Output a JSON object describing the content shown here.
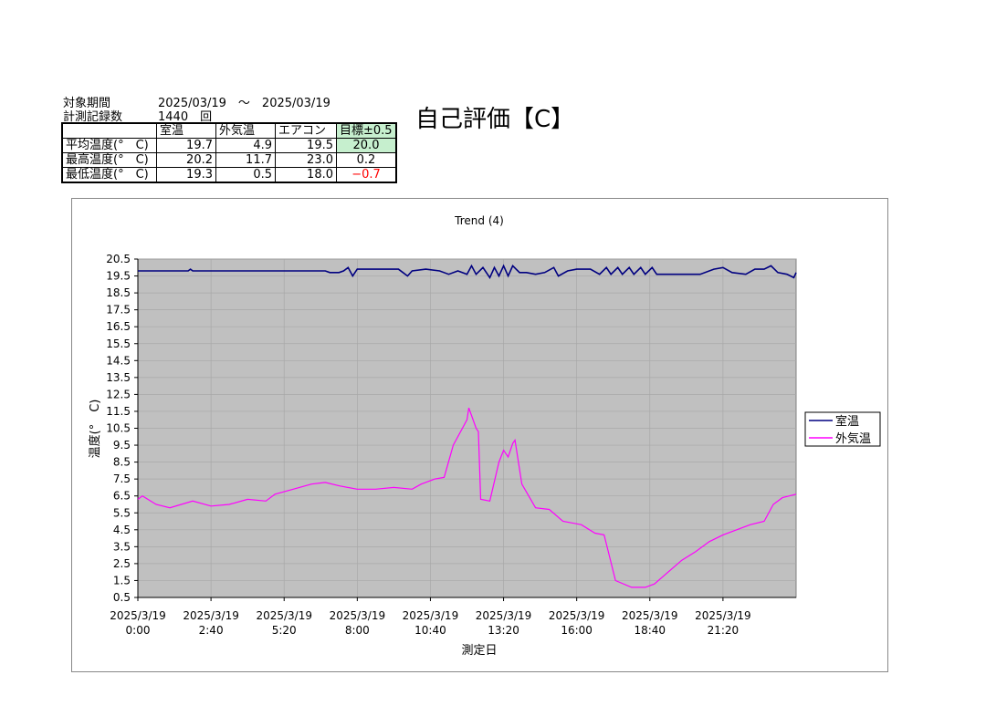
{
  "header": {
    "period_label": "対象期間",
    "period_value": "2025/03/19　～　2025/03/19",
    "count_label": "計測記録数",
    "count_value": "1440　回"
  },
  "self_eval": "自己評価【C】",
  "table": {
    "columns": [
      "",
      "室温",
      "外気温",
      "エアコン",
      "目標±0.5"
    ],
    "rows": [
      {
        "label": "平均温度(°　C)",
        "values": [
          "19.7",
          "4.9",
          "19.5",
          "20.0"
        ]
      },
      {
        "label": "最高温度(°　C)",
        "values": [
          "20.2",
          "11.7",
          "23.0",
          "0.2"
        ]
      },
      {
        "label": "最低温度(°　C)",
        "values": [
          "19.3",
          "0.5",
          "18.0",
          "−0.7"
        ]
      }
    ],
    "highlight_color": "#c6efce",
    "negative_color": "#ff0000"
  },
  "chart_data": {
    "type": "line",
    "title": "Trend (4)",
    "xlabel": "測定日",
    "ylabel": "温度(°　C)",
    "ylim": [
      0.5,
      20.5
    ],
    "yticks": [
      20.5,
      19.5,
      18.5,
      17.5,
      16.5,
      15.5,
      14.5,
      13.5,
      12.5,
      11.5,
      10.5,
      9.5,
      8.5,
      7.5,
      6.5,
      5.5,
      4.5,
      3.5,
      2.5,
      1.5,
      0.5
    ],
    "xlim": [
      "0:00",
      "24:00"
    ],
    "xticks": [
      [
        "2025/3/19",
        "0:00"
      ],
      [
        "2025/3/19",
        "2:40"
      ],
      [
        "2025/3/19",
        "5:20"
      ],
      [
        "2025/3/19",
        "8:00"
      ],
      [
        "2025/3/19",
        "10:40"
      ],
      [
        "2025/3/19",
        "13:20"
      ],
      [
        "2025/3/19",
        "16:00"
      ],
      [
        "2025/3/19",
        "18:40"
      ],
      [
        "2025/3/19",
        "21:20"
      ]
    ],
    "grid": true,
    "plot_background": "#c0c0c0",
    "legend_position": "right",
    "series": [
      {
        "name": "室温",
        "color": "#000080",
        "points": [
          [
            "0:00",
            19.8
          ],
          [
            "1:50",
            19.8
          ],
          [
            "1:55",
            19.9
          ],
          [
            "2:00",
            19.8
          ],
          [
            "6:50",
            19.8
          ],
          [
            "7:00",
            19.7
          ],
          [
            "7:20",
            19.7
          ],
          [
            "7:30",
            19.8
          ],
          [
            "7:40",
            20.0
          ],
          [
            "7:50",
            19.5
          ],
          [
            "8:00",
            19.9
          ],
          [
            "9:30",
            19.9
          ],
          [
            "9:40",
            19.7
          ],
          [
            "9:50",
            19.5
          ],
          [
            "10:00",
            19.8
          ],
          [
            "10:30",
            19.9
          ],
          [
            "11:00",
            19.8
          ],
          [
            "11:20",
            19.6
          ],
          [
            "11:40",
            19.8
          ],
          [
            "12:00",
            19.6
          ],
          [
            "12:10",
            20.1
          ],
          [
            "12:20",
            19.6
          ],
          [
            "12:35",
            20.0
          ],
          [
            "12:50",
            19.4
          ],
          [
            "13:00",
            20.0
          ],
          [
            "13:10",
            19.5
          ],
          [
            "13:20",
            20.1
          ],
          [
            "13:30",
            19.5
          ],
          [
            "13:40",
            20.1
          ],
          [
            "13:55",
            19.7
          ],
          [
            "14:10",
            19.7
          ],
          [
            "14:30",
            19.6
          ],
          [
            "14:50",
            19.7
          ],
          [
            "15:10",
            20.0
          ],
          [
            "15:20",
            19.5
          ],
          [
            "15:40",
            19.8
          ],
          [
            "16:00",
            19.9
          ],
          [
            "16:30",
            19.9
          ],
          [
            "16:50",
            19.6
          ],
          [
            "17:05",
            20.0
          ],
          [
            "17:15",
            19.6
          ],
          [
            "17:30",
            20.0
          ],
          [
            "17:40",
            19.6
          ],
          [
            "17:55",
            20.0
          ],
          [
            "18:05",
            19.6
          ],
          [
            "18:20",
            20.0
          ],
          [
            "18:30",
            19.6
          ],
          [
            "18:45",
            20.0
          ],
          [
            "18:55",
            19.6
          ],
          [
            "20:30",
            19.6
          ],
          [
            "21:00",
            19.9
          ],
          [
            "21:20",
            20.0
          ],
          [
            "21:40",
            19.7
          ],
          [
            "22:10",
            19.6
          ],
          [
            "22:30",
            19.9
          ],
          [
            "22:50",
            19.9
          ],
          [
            "23:05",
            20.1
          ],
          [
            "23:20",
            19.7
          ],
          [
            "23:40",
            19.6
          ],
          [
            "23:55",
            19.4
          ],
          [
            "24:00",
            19.7
          ]
        ]
      },
      {
        "name": "外気温",
        "color": "#ff00ff",
        "points": [
          [
            "0:00",
            6.3
          ],
          [
            "0:10",
            6.5
          ],
          [
            "0:40",
            6.0
          ],
          [
            "1:10",
            5.8
          ],
          [
            "2:00",
            6.2
          ],
          [
            "2:40",
            5.9
          ],
          [
            "3:20",
            6.0
          ],
          [
            "4:00",
            6.3
          ],
          [
            "4:40",
            6.2
          ],
          [
            "5:00",
            6.6
          ],
          [
            "5:40",
            6.9
          ],
          [
            "6:20",
            7.2
          ],
          [
            "6:50",
            7.3
          ],
          [
            "7:20",
            7.1
          ],
          [
            "8:00",
            6.9
          ],
          [
            "8:40",
            6.9
          ],
          [
            "9:20",
            7.0
          ],
          [
            "10:00",
            6.9
          ],
          [
            "10:20",
            7.2
          ],
          [
            "10:50",
            7.5
          ],
          [
            "11:10",
            7.6
          ],
          [
            "11:30",
            9.5
          ],
          [
            "12:00",
            11.0
          ],
          [
            "12:04",
            11.7
          ],
          [
            "12:20",
            10.5
          ],
          [
            "12:25",
            10.3
          ],
          [
            "12:30",
            6.3
          ],
          [
            "12:50",
            6.2
          ],
          [
            "13:10",
            8.5
          ],
          [
            "13:20",
            9.2
          ],
          [
            "13:30",
            8.8
          ],
          [
            "13:40",
            9.6
          ],
          [
            "13:45",
            9.8
          ],
          [
            "14:00",
            7.2
          ],
          [
            "14:30",
            5.8
          ],
          [
            "15:00",
            5.7
          ],
          [
            "15:30",
            5.0
          ],
          [
            "16:10",
            4.8
          ],
          [
            "16:40",
            4.3
          ],
          [
            "17:00",
            4.2
          ],
          [
            "17:25",
            1.5
          ],
          [
            "18:00",
            1.1
          ],
          [
            "18:30",
            1.1
          ],
          [
            "18:50",
            1.3
          ],
          [
            "19:20",
            2.0
          ],
          [
            "19:50",
            2.7
          ],
          [
            "20:20",
            3.2
          ],
          [
            "20:50",
            3.8
          ],
          [
            "21:20",
            4.2
          ],
          [
            "21:50",
            4.5
          ],
          [
            "22:20",
            4.8
          ],
          [
            "22:50",
            5.0
          ],
          [
            "23:10",
            6.0
          ],
          [
            "23:30",
            6.4
          ],
          [
            "24:00",
            6.6
          ]
        ]
      }
    ]
  }
}
